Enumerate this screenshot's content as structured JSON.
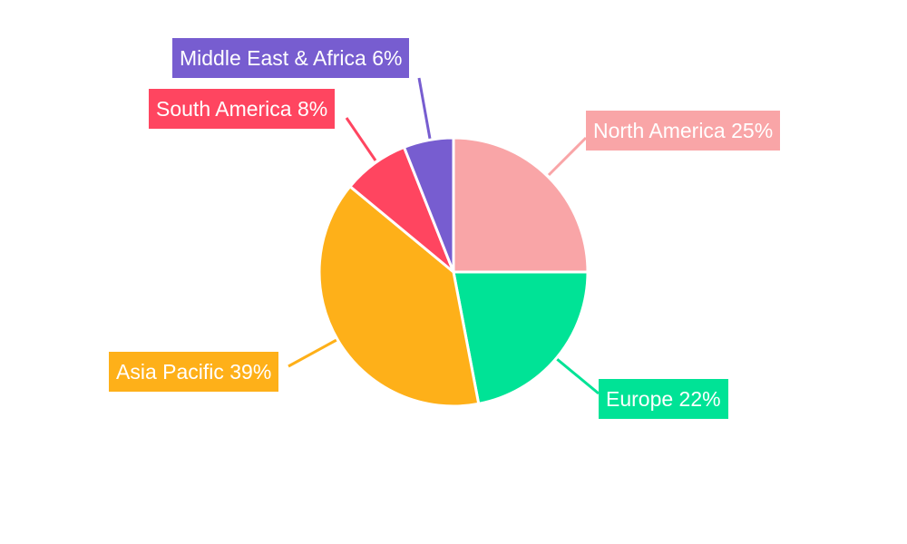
{
  "chart_data": {
    "type": "pie",
    "title": "",
    "start_angle_deg": 0,
    "direction": "clockwise",
    "slices": [
      {
        "label": "North America",
        "value": 25,
        "text": "North America 25%",
        "color": "#f9a5a7"
      },
      {
        "label": "Europe",
        "value": 22,
        "text": "Europe 22%",
        "color": "#00e396"
      },
      {
        "label": "Asia Pacific",
        "value": 39,
        "text": "Asia Pacific 39%",
        "color": "#feb019"
      },
      {
        "label": "South America",
        "value": 8,
        "text": "South America 8%",
        "color": "#ff4560"
      },
      {
        "label": "Middle East & Africa",
        "value": 6,
        "text": "Middle East & Africa 6%",
        "color": "#775dd0"
      }
    ],
    "legend": "none"
  }
}
